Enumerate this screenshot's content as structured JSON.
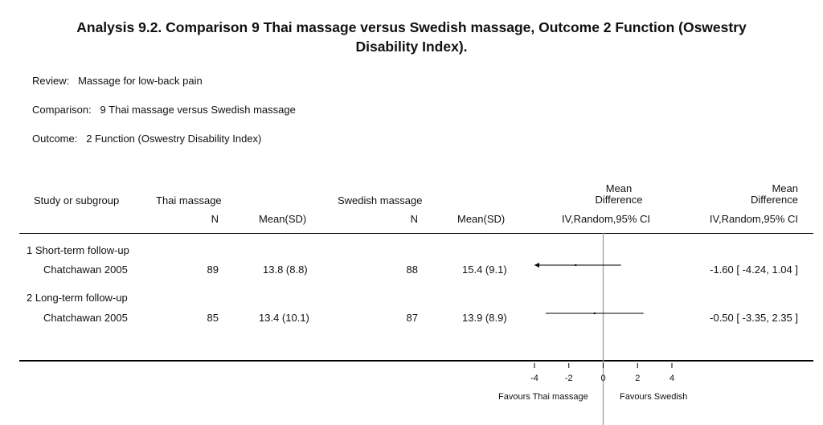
{
  "title_line1": "Analysis 9.2.   Comparison 9 Thai massage versus Swedish massage, Outcome 2 Function (Oswestry",
  "title_line2": "Disability Index).",
  "review": {
    "label": "Review:",
    "value": "Massage for low-back pain"
  },
  "comparison": {
    "label": "Comparison:",
    "value": "9 Thai massage versus Swedish massage"
  },
  "outcome": {
    "label": "Outcome:",
    "value": "2 Function (Oswestry Disability Index)"
  },
  "headers": {
    "study": "Study or subgroup",
    "group1": "Thai massage",
    "group2": "Swedish massage",
    "n": "N",
    "meansd": "Mean(SD)",
    "md_line1": "Mean",
    "md_line2": "Difference",
    "method": "IV,Random,95% CI"
  },
  "subgroups": [
    {
      "label": "1 Short-term follow-up",
      "study": "Chatchawan 2005",
      "n1": "89",
      "msd1": "13.8 (8.8)",
      "n2": "88",
      "msd2": "15.4 (9.1)",
      "ci_text": "-1.60 [ -4.24, 1.04 ]"
    },
    {
      "label": "2 Long-term follow-up",
      "study": "Chatchawan 2005",
      "n1": "85",
      "msd1": "13.4 (10.1)",
      "n2": "87",
      "msd2": "13.9 (8.9)",
      "ci_text": "-0.50 [ -3.35, 2.35 ]"
    }
  ],
  "footer": {
    "left": "Favours Thai massage",
    "right": "Favours Swedish"
  },
  "chart_data": {
    "type": "forest",
    "x_ticks": [
      "-4",
      "-2",
      "0",
      "2",
      "4"
    ],
    "xlim": [
      -4,
      4
    ],
    "rows": [
      {
        "study": "Chatchawan 2005",
        "estimate": -1.6,
        "lower": -4.24,
        "upper": 1.04
      },
      {
        "study": "Chatchawan 2005",
        "estimate": -0.5,
        "lower": -3.35,
        "upper": 2.35
      }
    ],
    "xlabel_left": "Favours Thai massage",
    "xlabel_right": "Favours Swedish"
  }
}
